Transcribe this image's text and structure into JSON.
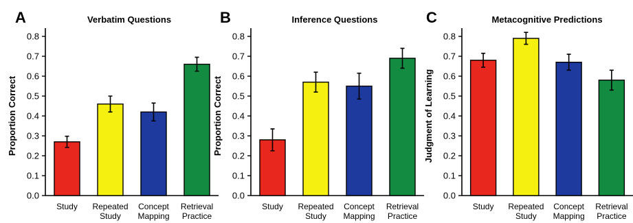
{
  "chart_data": [
    {
      "type": "bar",
      "panel": "A",
      "title": "Verbatim Questions",
      "xlabel": "",
      "ylabel": "Proportion Correct",
      "ylim": [
        0,
        0.8
      ],
      "yticks": [
        "0.0",
        "0.1",
        "0.2",
        "0.3",
        "0.4",
        "0.5",
        "0.6",
        "0.7",
        "0.8"
      ],
      "categories": [
        [
          "Study"
        ],
        [
          "Repeated",
          "Study"
        ],
        [
          "Concept",
          "Mapping"
        ],
        [
          "Retrieval",
          "Practice"
        ]
      ],
      "values": [
        0.27,
        0.46,
        0.42,
        0.66
      ],
      "errors": [
        0.028,
        0.04,
        0.045,
        0.035
      ],
      "colors": [
        "#e8281e",
        "#f5f010",
        "#1f3a9e",
        "#138c42"
      ],
      "grid": false
    },
    {
      "type": "bar",
      "panel": "B",
      "title": "Inference Questions",
      "xlabel": "",
      "ylabel": "Proportion Correct",
      "ylim": [
        0,
        0.8
      ],
      "yticks": [
        "0.0",
        "0.1",
        "0.2",
        "0.3",
        "0.4",
        "0.5",
        "0.6",
        "0.7",
        "0.8"
      ],
      "categories": [
        [
          "Study"
        ],
        [
          "Repeated",
          "Study"
        ],
        [
          "Concept",
          "Mapping"
        ],
        [
          "Retrieval",
          "Practice"
        ]
      ],
      "values": [
        0.28,
        0.57,
        0.55,
        0.69
      ],
      "errors": [
        0.055,
        0.05,
        0.065,
        0.05
      ],
      "colors": [
        "#e8281e",
        "#f5f010",
        "#1f3a9e",
        "#138c42"
      ],
      "grid": false
    },
    {
      "type": "bar",
      "panel": "C",
      "title": "Metacognitive Predictions",
      "xlabel": "",
      "ylabel": "Judgment of Learning",
      "ylim": [
        0,
        0.8
      ],
      "yticks": [
        "0.0",
        "0.1",
        "0.2",
        "0.3",
        "0.4",
        "0.5",
        "0.6",
        "0.7",
        "0.8"
      ],
      "categories": [
        [
          "Study"
        ],
        [
          "Repeated",
          "Study"
        ],
        [
          "Concept",
          "Mapping"
        ],
        [
          "Retrieval",
          "Practice"
        ]
      ],
      "values": [
        0.68,
        0.79,
        0.67,
        0.58
      ],
      "errors": [
        0.035,
        0.03,
        0.04,
        0.05
      ],
      "colors": [
        "#e8281e",
        "#f5f010",
        "#1f3a9e",
        "#138c42"
      ],
      "grid": false
    }
  ]
}
